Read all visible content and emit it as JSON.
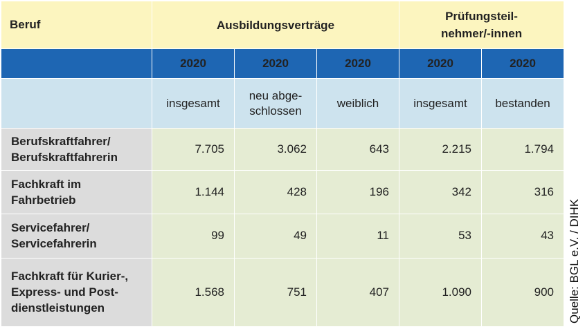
{
  "header": {
    "beruf": "Beruf",
    "group1": "Ausbildungsverträge",
    "group2_line1": "Prüfungsteil-",
    "group2_line2": "nehmer/-innen"
  },
  "years": [
    "2020",
    "2020",
    "2020",
    "2020",
    "2020"
  ],
  "subheaders": [
    {
      "l1": "insgesamt",
      "l2": ""
    },
    {
      "l1": "neu abge-",
      "l2": "schlossen"
    },
    {
      "l1": "weiblich",
      "l2": ""
    },
    {
      "l1": "insgesamt",
      "l2": ""
    },
    {
      "l1": "bestanden",
      "l2": ""
    }
  ],
  "rows": [
    {
      "lines": [
        "Berufskraftfahrer/",
        "Berufskraftfahrerin"
      ],
      "values": [
        "7.705",
        "3.062",
        "643",
        "2.215",
        "1.794"
      ]
    },
    {
      "lines": [
        "Fachkraft im",
        "Fahrbetrieb"
      ],
      "values": [
        "1.144",
        "428",
        "196",
        "342",
        "316"
      ]
    },
    {
      "lines": [
        "Servicefahrer/",
        "Servicefahrerin"
      ],
      "values": [
        "99",
        "49",
        "11",
        "53",
        "43"
      ]
    },
    {
      "lines": [
        "Fachkraft für Kurier-,",
        "Express- und Post-",
        "dienstleistungen"
      ],
      "values": [
        "1.568",
        "751",
        "407",
        "1.090",
        "900"
      ]
    }
  ],
  "source": "Quelle: BGL e.V. / DIHK"
}
